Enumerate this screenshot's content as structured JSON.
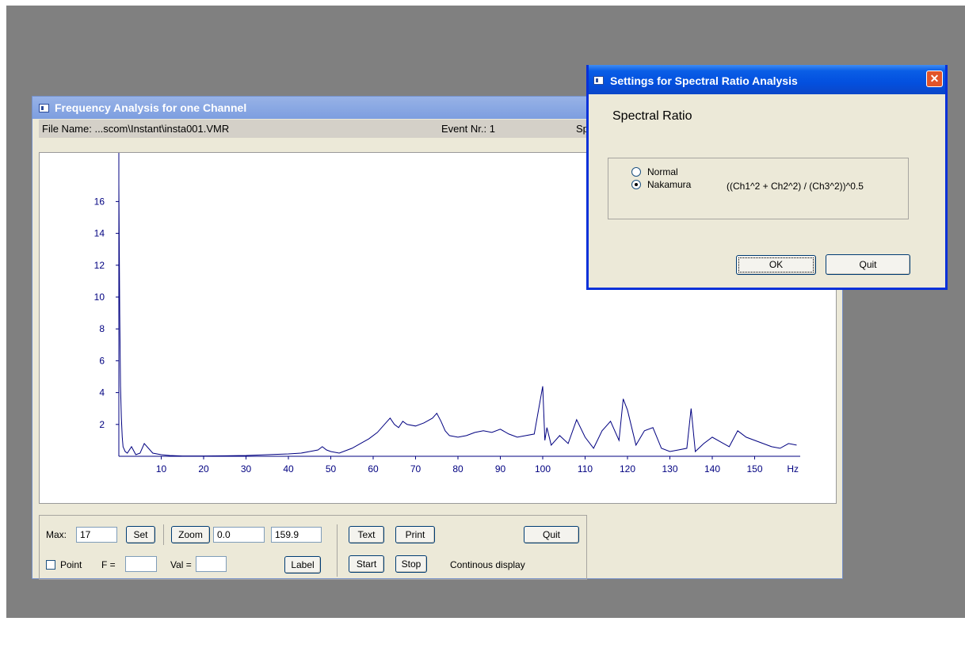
{
  "main_window": {
    "title": "Frequency Analysis for one Channel",
    "info": {
      "file_name": "File Name: ...scom\\Instant\\insta001.VMR",
      "event": "Event Nr.: 1",
      "truncated": "Spe"
    },
    "controls": {
      "max_label": "Max:",
      "max_value": "17",
      "set_label": "Set",
      "zoom_label": "Zoom",
      "zoom_from": "0.0",
      "zoom_to": "159.9",
      "text_label": "Text",
      "print_label": "Print",
      "quit_label": "Quit",
      "point_label": "Point",
      "f_label": "F =",
      "f_value": "",
      "val_label": "Val =",
      "val_value": "",
      "label_label": "Label",
      "start_label": "Start",
      "stop_label": "Stop",
      "status": "Continous display"
    }
  },
  "chart_data": {
    "type": "line",
    "color": "#000080",
    "xunit": "Hz",
    "xlim": [
      0,
      160
    ],
    "ylim": [
      0,
      17
    ],
    "xticks": [
      10,
      20,
      30,
      40,
      50,
      60,
      70,
      80,
      90,
      100,
      110,
      120,
      130,
      140,
      150
    ],
    "yticks": [
      2,
      4,
      6,
      8,
      10,
      12,
      14,
      16
    ],
    "x": [
      0.0,
      0.2,
      0.4,
      0.6,
      0.8,
      1.0,
      1.5,
      2,
      3,
      4,
      5,
      6,
      8,
      10,
      12,
      15,
      20,
      25,
      30,
      35,
      40,
      43,
      45,
      47,
      48,
      49,
      50,
      52,
      55,
      57,
      59,
      61,
      63,
      64,
      65,
      66,
      67,
      68,
      70,
      72,
      74,
      75,
      76,
      77,
      78,
      80,
      82,
      84,
      86,
      88,
      90,
      92,
      94,
      96,
      98,
      100,
      100.5,
      101,
      102,
      104,
      106,
      108,
      110,
      112,
      114,
      116,
      118,
      119,
      120,
      122,
      124,
      126,
      128,
      130,
      132,
      134,
      135,
      136,
      138,
      140,
      142,
      144,
      146,
      148,
      150,
      152,
      154,
      156,
      158,
      159.9
    ],
    "y": [
      17.1,
      9.0,
      4.4,
      2.4,
      1.2,
      0.6,
      0.3,
      0.2,
      0.6,
      0.1,
      0.2,
      0.8,
      0.2,
      0.1,
      0.05,
      0.02,
      0.02,
      0.03,
      0.05,
      0.1,
      0.15,
      0.2,
      0.3,
      0.4,
      0.6,
      0.4,
      0.3,
      0.2,
      0.5,
      0.8,
      1.1,
      1.5,
      2.1,
      2.4,
      2.0,
      1.8,
      2.2,
      2.0,
      1.9,
      2.1,
      2.4,
      2.7,
      2.2,
      1.6,
      1.3,
      1.2,
      1.3,
      1.5,
      1.6,
      1.5,
      1.7,
      1.4,
      1.2,
      1.3,
      1.4,
      4.4,
      1.0,
      1.8,
      0.7,
      1.3,
      0.8,
      2.3,
      1.2,
      0.5,
      1.6,
      2.2,
      1.0,
      3.6,
      2.9,
      0.7,
      1.6,
      1.8,
      0.5,
      0.3,
      0.4,
      0.5,
      3.0,
      0.3,
      0.8,
      1.2,
      0.9,
      0.6,
      1.6,
      1.2,
      1.0,
      0.8,
      0.6,
      0.5,
      0.8,
      0.7
    ]
  },
  "dialog": {
    "title": "Settings for Spectral Ratio Analysis",
    "heading": "Spectral Ratio",
    "options": [
      {
        "label": "Normal",
        "selected": false,
        "formula": ""
      },
      {
        "label": "Nakamura",
        "selected": true,
        "formula": "((Ch1^2 + Ch2^2) / (Ch3^2))^0.5"
      }
    ],
    "ok_label": "OK",
    "quit_label": "Quit",
    "close_label": "✕"
  }
}
